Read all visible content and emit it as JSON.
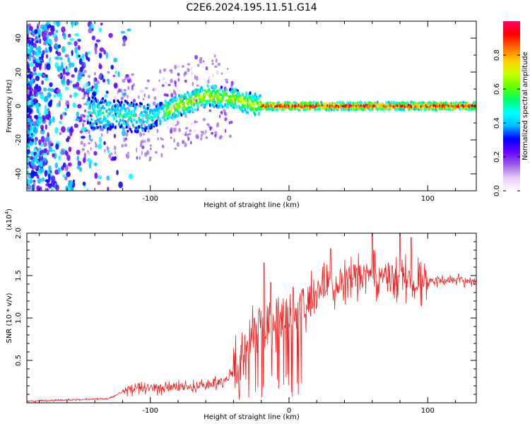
{
  "title": "C2E6.2024.195.11.51.G14",
  "colors": {
    "background": "#ffffff",
    "axis": "#000000",
    "snr_line": "#ee2222"
  },
  "chart_data": [
    {
      "type": "heatmap",
      "xlabel": "Height of straight line (km)",
      "ylabel": "Frequency (Hz)",
      "xlim": [
        -189,
        135
      ],
      "ylim": [
        -50,
        50
      ],
      "x_ticks": [
        -100,
        0,
        100
      ],
      "x_tick_labels": [
        "-100",
        "0",
        "100"
      ],
      "y_ticks": [
        -40,
        -20,
        0,
        20,
        40
      ],
      "y_tick_labels": [
        "-40",
        "-20",
        "0",
        "20",
        "40"
      ],
      "colorbar": {
        "label": "Normalized spectral amplitude",
        "range": [
          0,
          1
        ],
        "ticks": [
          0.0,
          0.2,
          0.4,
          0.6,
          0.8
        ],
        "tick_labels": [
          "0.0",
          "0.2",
          "0.4",
          "0.6",
          "0.8"
        ],
        "colormap": [
          "#ffffff",
          "#e6ccf5",
          "#9b5de5",
          "#6600ff",
          "#0000ff",
          "#00bfff",
          "#00ffff",
          "#00ff66",
          "#66ff00",
          "#ccff00",
          "#ffcc00",
          "#ff6600",
          "#ff0000",
          "#ff0066"
        ]
      },
      "ridge_center_hz": [
        {
          "x": -140,
          "y": -4
        },
        {
          "x": -120,
          "y": -6
        },
        {
          "x": -100,
          "y": -7
        },
        {
          "x": -80,
          "y": 0
        },
        {
          "x": -60,
          "y": 6
        },
        {
          "x": -45,
          "y": 5
        },
        {
          "x": -30,
          "y": 2
        },
        {
          "x": -20,
          "y": 0
        },
        {
          "x": 135,
          "y": 0
        }
      ]
    },
    {
      "type": "line",
      "xlabel": "Height of straight line (km)",
      "ylabel": "SNR (10 * v/v)",
      "y_multiplier": "(x10",
      "y_multiplier_exp": "4",
      "xlim": [
        -189,
        135
      ],
      "ylim": [
        0,
        2.0
      ],
      "x_ticks": [
        -100,
        0,
        100
      ],
      "x_tick_labels": [
        "-100",
        "0",
        "100"
      ],
      "y_ticks": [
        0.5,
        1.0,
        1.5,
        2.0
      ],
      "y_tick_labels": [
        "0.5",
        "1.0",
        "1.5",
        "2.0"
      ],
      "series": [
        {
          "name": "SNR",
          "trend": [
            {
              "x": -189,
              "y": 0.02
            },
            {
              "x": -130,
              "y": 0.05
            },
            {
              "x": -115,
              "y": 0.17
            },
            {
              "x": -60,
              "y": 0.2
            },
            {
              "x": -45,
              "y": 0.28
            },
            {
              "x": -35,
              "y": 0.5
            },
            {
              "x": -25,
              "y": 0.9
            },
            {
              "x": -15,
              "y": 1.05
            },
            {
              "x": 0,
              "y": 1.1
            },
            {
              "x": 15,
              "y": 1.2
            },
            {
              "x": 25,
              "y": 1.4
            },
            {
              "x": 45,
              "y": 1.5
            },
            {
              "x": 65,
              "y": 1.52
            },
            {
              "x": 100,
              "y": 1.45
            },
            {
              "x": 135,
              "y": 1.45
            }
          ],
          "spikes": [
            {
              "x": -18,
              "y": 1.65
            },
            {
              "x": -13,
              "y": 1.42
            },
            {
              "x": 3,
              "y": 1.36
            },
            {
              "x": 30,
              "y": 1.82
            },
            {
              "x": 60,
              "y": 2.0
            },
            {
              "x": 80,
              "y": 2.0
            },
            {
              "x": 88,
              "y": 1.95
            }
          ]
        }
      ]
    }
  ]
}
